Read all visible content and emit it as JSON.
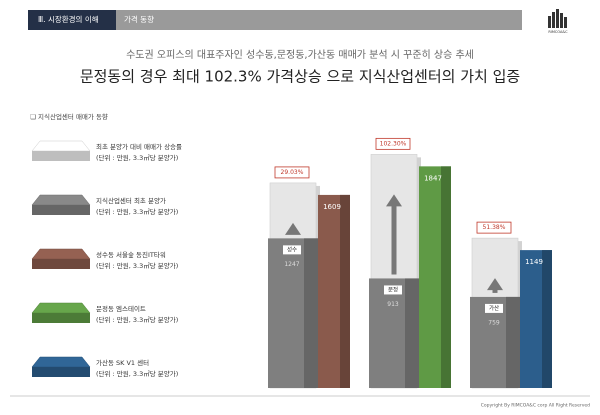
{
  "header": {
    "section": "Ⅲ. 시장환경의 이해",
    "tab": "가격 동향",
    "logo": "RIMCOA&C"
  },
  "subtitle": "수도권 오피스의 대표주자인 성수동,문정동,가산동 매매가 분석 시 꾸준히 상승 추세",
  "title": "문정동의 경우 최대 102.3% 가격상승 으로 지식산업센터의 가치 입증",
  "footer": "Copyright By RIMCOA&C corp All Right Reserved",
  "chart_data": {
    "type": "bar",
    "legend_title": "지식산업센터 매매가 동향",
    "categories": [
      "성수",
      "문정",
      "가산"
    ],
    "series": [
      {
        "name": "최초 분양가 대비 매매가 상승률",
        "unit": "(단위 : 만원, 3.3㎡당 분양가)",
        "color": "#eeeeee",
        "values": [
          29.03,
          102.3,
          51.38
        ],
        "value_labels": [
          "29.03%",
          "102.30%",
          "51.38%"
        ]
      },
      {
        "name": "지식산업센터 최초 분양가",
        "unit": "(단위 : 만원, 3.3㎡당 분양가)",
        "color": "#7f7f7f",
        "values": [
          1247,
          913,
          759
        ]
      },
      {
        "name": "성수동 서울숲 동진IT타워",
        "unit": "(단위 : 만원, 3.3㎡당 분양가)",
        "color": "#8a5a4c",
        "values": [
          1609,
          null,
          null
        ]
      },
      {
        "name": "문정동 엠스테이트",
        "unit": "(단위 : 만원, 3.3㎡당 분양가)",
        "color": "#5f9a45",
        "values": [
          null,
          1847,
          null
        ]
      },
      {
        "name": "가산동 SK V1 센터",
        "unit": "(단위 : 만원, 3.3㎡당 분양가)",
        "color": "#2c5e8c",
        "values": [
          null,
          null,
          1149
        ]
      }
    ]
  }
}
